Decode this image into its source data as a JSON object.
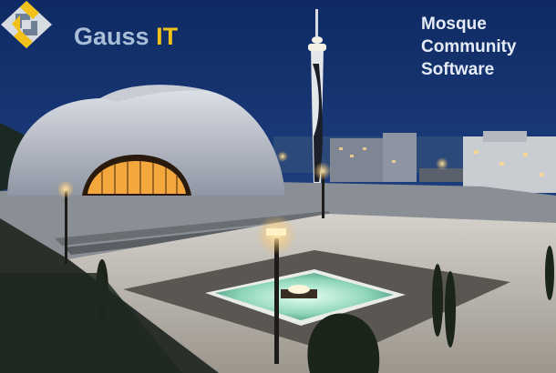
{
  "brand": {
    "name_part1": "Gauss",
    "name_part2": "IT",
    "accent_color": "#f2c21b",
    "muted_color": "#a9bfd8"
  },
  "tagline": {
    "text": "Mosque\nCommunity\nSoftware"
  },
  "logo": {
    "icon": "gauss-it-logo-icon"
  }
}
